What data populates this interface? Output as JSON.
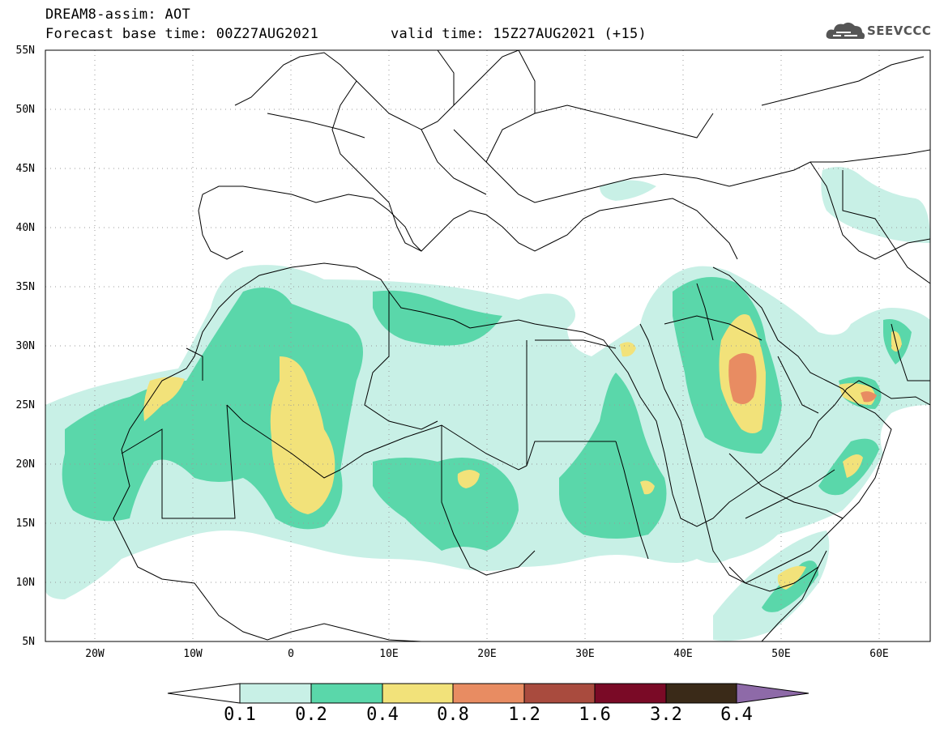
{
  "header": {
    "line1": "DREAM8-assim: AOT",
    "line2": "Forecast base time: 00Z27AUG2021",
    "line3": "valid time: 15Z27AUG2021 (+15)"
  },
  "logo": {
    "text": "SEEVCCC",
    "icon": "cloud-icon"
  },
  "map": {
    "lat_labels": [
      "55N",
      "50N",
      "45N",
      "40N",
      "35N",
      "30N",
      "25N",
      "20N",
      "15N",
      "10N",
      "5N"
    ],
    "lon_labels": [
      "20W",
      "10W",
      "0",
      "10E",
      "20E",
      "30E",
      "40E",
      "50E",
      "60E"
    ]
  },
  "colorbar": {
    "labels": [
      "0.1",
      "0.2",
      "0.4",
      "0.8",
      "1.2",
      "1.6",
      "3.2",
      "6.4"
    ],
    "colors": [
      "#c8f0e6",
      "#5ad7aa",
      "#f2e27a",
      "#e88c62",
      "#a94b3e",
      "#7a0a26",
      "#3a2a18",
      "#8e6aa8"
    ]
  }
}
